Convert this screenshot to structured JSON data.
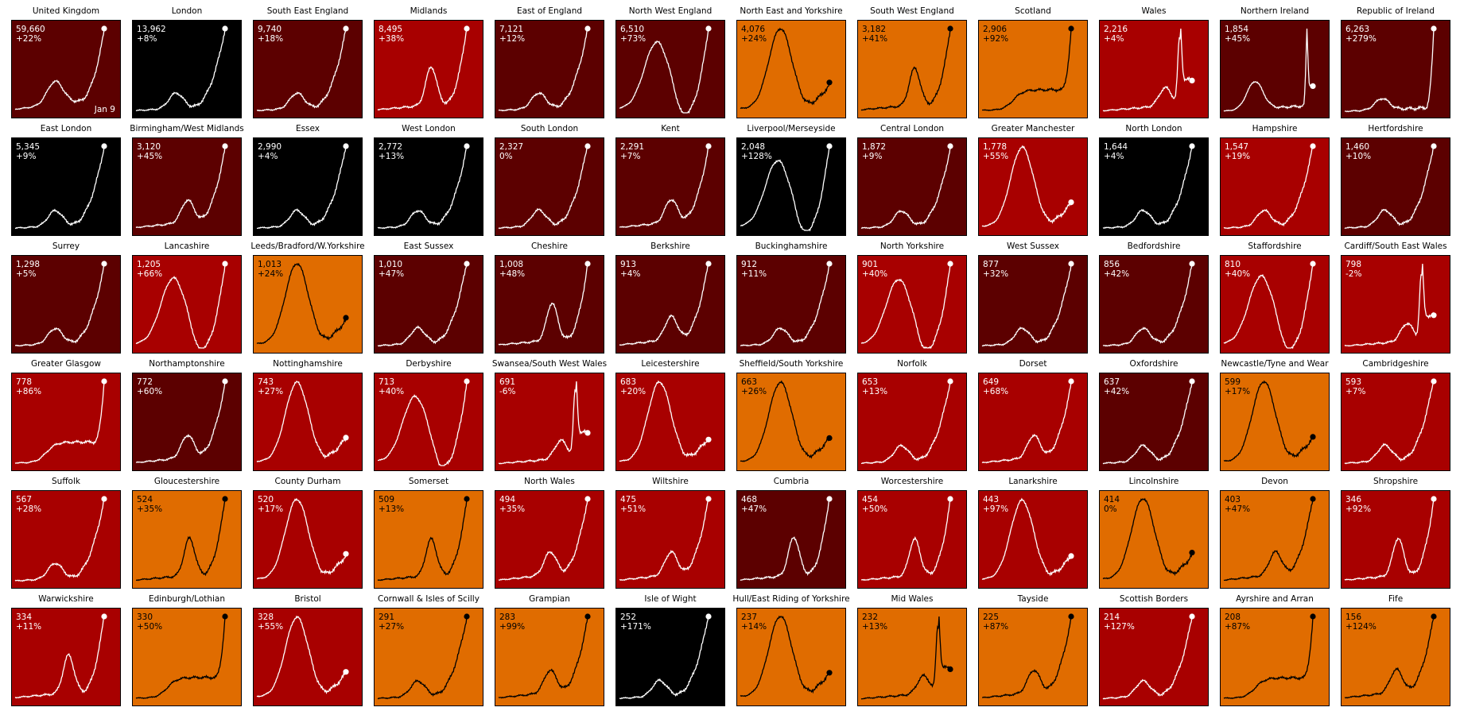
{
  "chart_data": {
    "type": "line",
    "date_label": "Jan 9",
    "colors": {
      "white_line": "#ffffff",
      "black_line": "#000000"
    },
    "panels": [
      {
        "title": "United Kingdom",
        "value": "59,660",
        "change": "+22%",
        "bg": "#5c0000",
        "line": "white",
        "shape": "uk"
      },
      {
        "title": "London",
        "value": "13,962",
        "change": "+8%",
        "bg": "#000000",
        "line": "white",
        "shape": "spike"
      },
      {
        "title": "South East England",
        "value": "9,740",
        "change": "+18%",
        "bg": "#5c0000",
        "line": "white",
        "shape": "spike"
      },
      {
        "title": "Midlands",
        "value": "8,495",
        "change": "+38%",
        "bg": "#a80000",
        "line": "white",
        "shape": "bump"
      },
      {
        "title": "East of England",
        "value": "7,121",
        "change": "+12%",
        "bg": "#5c0000",
        "line": "white",
        "shape": "spike"
      },
      {
        "title": "North West England",
        "value": "6,510",
        "change": "+73%",
        "bg": "#5c0000",
        "line": "white",
        "shape": "bigbump"
      },
      {
        "title": "North East and Yorkshire",
        "value": "4,076",
        "change": "+24%",
        "bg": "#e06c00",
        "line": "black",
        "shape": "peak_drop"
      },
      {
        "title": "South West England",
        "value": "3,182",
        "change": "+41%",
        "bg": "#e06c00",
        "line": "black",
        "shape": "bump"
      },
      {
        "title": "Scotland",
        "value": "2,906",
        "change": "+92%",
        "bg": "#e06c00",
        "line": "black",
        "shape": "plateau"
      },
      {
        "title": "Wales",
        "value": "2,216",
        "change": "+4%",
        "bg": "#a80000",
        "line": "white",
        "shape": "wales"
      },
      {
        "title": "Northern Ireland",
        "value": "1,854",
        "change": "+45%",
        "bg": "#5c0000",
        "line": "white",
        "shape": "ni"
      },
      {
        "title": "Republic of Ireland",
        "value": "6,263",
        "change": "+279%",
        "bg": "#5c0000",
        "line": "white",
        "shape": "roi"
      },
      {
        "title": "East London",
        "value": "5,345",
        "change": "+9%",
        "bg": "#000000",
        "line": "white",
        "shape": "spike"
      },
      {
        "title": "Birmingham/West Midlands",
        "value": "3,120",
        "change": "+45%",
        "bg": "#5c0000",
        "line": "white",
        "shape": "rising"
      },
      {
        "title": "Essex",
        "value": "2,990",
        "change": "+4%",
        "bg": "#000000",
        "line": "white",
        "shape": "spike"
      },
      {
        "title": "West London",
        "value": "2,772",
        "change": "+13%",
        "bg": "#000000",
        "line": "white",
        "shape": "spike"
      },
      {
        "title": "South London",
        "value": "2,327",
        "change": "0%",
        "bg": "#5c0000",
        "line": "white",
        "shape": "spike"
      },
      {
        "title": "Kent",
        "value": "2,291",
        "change": "+7%",
        "bg": "#5c0000",
        "line": "white",
        "shape": "rising"
      },
      {
        "title": "Liverpool/Merseyside",
        "value": "2,048",
        "change": "+128%",
        "bg": "#000000",
        "line": "white",
        "shape": "bigbump"
      },
      {
        "title": "Central London",
        "value": "1,872",
        "change": "+9%",
        "bg": "#5c0000",
        "line": "white",
        "shape": "spike"
      },
      {
        "title": "Greater Manchester",
        "value": "1,778",
        "change": "+55%",
        "bg": "#a80000",
        "line": "white",
        "shape": "peak_drop"
      },
      {
        "title": "North London",
        "value": "1,644",
        "change": "+4%",
        "bg": "#000000",
        "line": "white",
        "shape": "spike"
      },
      {
        "title": "Hampshire",
        "value": "1,547",
        "change": "+19%",
        "bg": "#a80000",
        "line": "white",
        "shape": "spike"
      },
      {
        "title": "Hertfordshire",
        "value": "1,460",
        "change": "+10%",
        "bg": "#5c0000",
        "line": "white",
        "shape": "spike"
      },
      {
        "title": "Surrey",
        "value": "1,298",
        "change": "+5%",
        "bg": "#5c0000",
        "line": "white",
        "shape": "spike"
      },
      {
        "title": "Lancashire",
        "value": "1,205",
        "change": "+66%",
        "bg": "#a80000",
        "line": "white",
        "shape": "bigbump"
      },
      {
        "title": "Leeds/Bradford/W.Yorkshire",
        "value": "1,013",
        "change": "+24%",
        "bg": "#e06c00",
        "line": "black",
        "shape": "peak_drop"
      },
      {
        "title": "East Sussex",
        "value": "1,010",
        "change": "+47%",
        "bg": "#5c0000",
        "line": "white",
        "shape": "spike"
      },
      {
        "title": "Cheshire",
        "value": "1,008",
        "change": "+48%",
        "bg": "#5c0000",
        "line": "white",
        "shape": "bump"
      },
      {
        "title": "Berkshire",
        "value": "913",
        "change": "+4%",
        "bg": "#5c0000",
        "line": "white",
        "shape": "rising"
      },
      {
        "title": "Buckinghamshire",
        "value": "912",
        "change": "+11%",
        "bg": "#5c0000",
        "line": "white",
        "shape": "spike"
      },
      {
        "title": "North Yorkshire",
        "value": "901",
        "change": "+40%",
        "bg": "#a80000",
        "line": "white",
        "shape": "bigbump"
      },
      {
        "title": "West Sussex",
        "value": "877",
        "change": "+32%",
        "bg": "#5c0000",
        "line": "white",
        "shape": "spike"
      },
      {
        "title": "Bedfordshire",
        "value": "856",
        "change": "+42%",
        "bg": "#5c0000",
        "line": "white",
        "shape": "spike"
      },
      {
        "title": "Staffordshire",
        "value": "810",
        "change": "+40%",
        "bg": "#a80000",
        "line": "white",
        "shape": "bigbump"
      },
      {
        "title": "Cardiff/South East Wales",
        "value": "798",
        "change": "-2%",
        "bg": "#a80000",
        "line": "white",
        "shape": "wales"
      },
      {
        "title": "Greater Glasgow",
        "value": "778",
        "change": "+86%",
        "bg": "#a80000",
        "line": "white",
        "shape": "plateau"
      },
      {
        "title": "Northamptonshire",
        "value": "772",
        "change": "+60%",
        "bg": "#5c0000",
        "line": "white",
        "shape": "rising"
      },
      {
        "title": "Nottinghamshire",
        "value": "743",
        "change": "+27%",
        "bg": "#a80000",
        "line": "white",
        "shape": "peak_drop"
      },
      {
        "title": "Derbyshire",
        "value": "713",
        "change": "+40%",
        "bg": "#a80000",
        "line": "white",
        "shape": "bigbump"
      },
      {
        "title": "Swansea/South West Wales",
        "value": "691",
        "change": "-6%",
        "bg": "#a80000",
        "line": "white",
        "shape": "wales"
      },
      {
        "title": "Leicestershire",
        "value": "683",
        "change": "+20%",
        "bg": "#a80000",
        "line": "white",
        "shape": "peak_drop"
      },
      {
        "title": "Sheffield/South Yorkshire",
        "value": "663",
        "change": "+26%",
        "bg": "#e06c00",
        "line": "black",
        "shape": "peak_drop"
      },
      {
        "title": "Norfolk",
        "value": "653",
        "change": "+13%",
        "bg": "#a80000",
        "line": "white",
        "shape": "spike"
      },
      {
        "title": "Dorset",
        "value": "649",
        "change": "+68%",
        "bg": "#a80000",
        "line": "white",
        "shape": "rising"
      },
      {
        "title": "Oxfordshire",
        "value": "637",
        "change": "+42%",
        "bg": "#5c0000",
        "line": "white",
        "shape": "spike"
      },
      {
        "title": "Newcastle/Tyne and Wear",
        "value": "599",
        "change": "+17%",
        "bg": "#e06c00",
        "line": "black",
        "shape": "peak_drop"
      },
      {
        "title": "Cambridgeshire",
        "value": "593",
        "change": "+7%",
        "bg": "#a80000",
        "line": "white",
        "shape": "spike"
      },
      {
        "title": "Suffolk",
        "value": "567",
        "change": "+28%",
        "bg": "#a80000",
        "line": "white",
        "shape": "spike"
      },
      {
        "title": "Gloucestershire",
        "value": "524",
        "change": "+35%",
        "bg": "#e06c00",
        "line": "black",
        "shape": "bump"
      },
      {
        "title": "County Durham",
        "value": "520",
        "change": "+17%",
        "bg": "#a80000",
        "line": "white",
        "shape": "peak_drop"
      },
      {
        "title": "Somerset",
        "value": "509",
        "change": "+13%",
        "bg": "#e06c00",
        "line": "black",
        "shape": "bump"
      },
      {
        "title": "North Wales",
        "value": "494",
        "change": "+35%",
        "bg": "#a80000",
        "line": "white",
        "shape": "rising"
      },
      {
        "title": "Wiltshire",
        "value": "475",
        "change": "+51%",
        "bg": "#a80000",
        "line": "white",
        "shape": "rising"
      },
      {
        "title": "Cumbria",
        "value": "468",
        "change": "+47%",
        "bg": "#5c0000",
        "line": "white",
        "shape": "bump"
      },
      {
        "title": "Worcestershire",
        "value": "454",
        "change": "+50%",
        "bg": "#a80000",
        "line": "white",
        "shape": "bump"
      },
      {
        "title": "Lanarkshire",
        "value": "443",
        "change": "+97%",
        "bg": "#a80000",
        "line": "white",
        "shape": "peak_drop"
      },
      {
        "title": "Lincolnshire",
        "value": "414",
        "change": "0%",
        "bg": "#e06c00",
        "line": "black",
        "shape": "peak_drop"
      },
      {
        "title": "Devon",
        "value": "403",
        "change": "+47%",
        "bg": "#e06c00",
        "line": "black",
        "shape": "rising"
      },
      {
        "title": "Shropshire",
        "value": "346",
        "change": "+92%",
        "bg": "#a80000",
        "line": "white",
        "shape": "bump"
      },
      {
        "title": "Warwickshire",
        "value": "334",
        "change": "+11%",
        "bg": "#a80000",
        "line": "white",
        "shape": "bump"
      },
      {
        "title": "Edinburgh/Lothian",
        "value": "330",
        "change": "+50%",
        "bg": "#e06c00",
        "line": "black",
        "shape": "plateau"
      },
      {
        "title": "Bristol",
        "value": "328",
        "change": "+55%",
        "bg": "#a80000",
        "line": "white",
        "shape": "peak_drop"
      },
      {
        "title": "Cornwall & Isles of Scilly",
        "value": "291",
        "change": "+27%",
        "bg": "#e06c00",
        "line": "black",
        "shape": "spike"
      },
      {
        "title": "Grampian",
        "value": "283",
        "change": "+99%",
        "bg": "#e06c00",
        "line": "black",
        "shape": "rising"
      },
      {
        "title": "Isle of Wight",
        "value": "252",
        "change": "+171%",
        "bg": "#000000",
        "line": "white",
        "shape": "spike"
      },
      {
        "title": "Hull/East Riding of Yorkshire",
        "value": "237",
        "change": "+14%",
        "bg": "#e06c00",
        "line": "black",
        "shape": "peak_drop"
      },
      {
        "title": "Mid Wales",
        "value": "232",
        "change": "+13%",
        "bg": "#e06c00",
        "line": "black",
        "shape": "wales"
      },
      {
        "title": "Tayside",
        "value": "225",
        "change": "+87%",
        "bg": "#e06c00",
        "line": "black",
        "shape": "rising"
      },
      {
        "title": "Scottish Borders",
        "value": "214",
        "change": "+127%",
        "bg": "#a80000",
        "line": "white",
        "shape": "spike"
      },
      {
        "title": "Ayrshire and Arran",
        "value": "208",
        "change": "+87%",
        "bg": "#e06c00",
        "line": "black",
        "shape": "plateau"
      },
      {
        "title": "Fife",
        "value": "156",
        "change": "+124%",
        "bg": "#e06c00",
        "line": "black",
        "shape": "rising"
      }
    ]
  }
}
